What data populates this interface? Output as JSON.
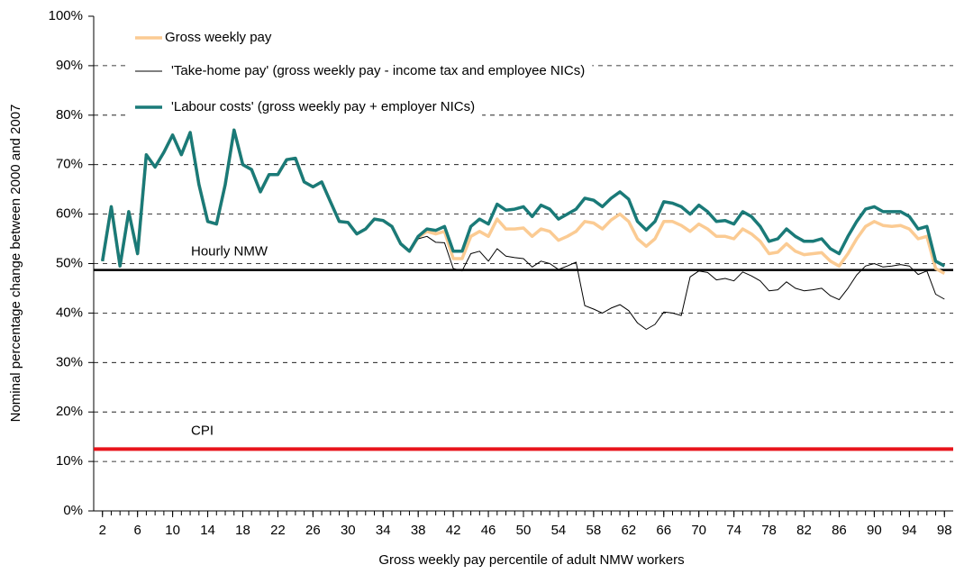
{
  "chart_data": {
    "type": "line",
    "x_label": "Gross weekly pay percentile of adult NMW workers",
    "y_label": "Nominal percentage change between 2000 and 2007",
    "x": [
      2,
      3,
      4,
      5,
      6,
      7,
      8,
      9,
      10,
      11,
      12,
      13,
      14,
      15,
      16,
      17,
      18,
      19,
      20,
      21,
      22,
      23,
      24,
      25,
      26,
      27,
      28,
      29,
      30,
      31,
      32,
      33,
      34,
      35,
      36,
      37,
      38,
      39,
      40,
      41,
      42,
      43,
      44,
      45,
      46,
      47,
      48,
      49,
      50,
      51,
      52,
      53,
      54,
      55,
      56,
      57,
      58,
      59,
      60,
      61,
      62,
      63,
      64,
      65,
      66,
      67,
      68,
      69,
      70,
      71,
      72,
      73,
      74,
      75,
      76,
      77,
      78,
      79,
      80,
      81,
      82,
      83,
      84,
      85,
      86,
      87,
      88,
      89,
      90,
      91,
      92,
      93,
      94,
      95,
      96,
      97,
      98
    ],
    "series": [
      {
        "name": "Gross weekly pay",
        "color": "#fbcb93",
        "values": [
          50.5,
          61.5,
          49.5,
          60.5,
          52,
          72,
          69.5,
          72.5,
          76,
          72,
          76.5,
          66,
          58.5,
          58,
          66,
          77,
          70,
          69,
          64.5,
          68,
          68,
          71,
          71.3,
          66.5,
          65.5,
          66.5,
          62.5,
          58.5,
          58.3,
          56,
          57,
          59,
          58.7,
          57.5,
          54,
          52.5,
          55.3,
          56.5,
          56,
          56.5,
          51,
          51,
          55.5,
          56.5,
          55.5,
          59,
          57,
          57,
          57.2,
          55.5,
          57,
          56.5,
          54.7,
          55.5,
          56.5,
          58.5,
          58.2,
          57,
          58.8,
          60,
          58.5,
          55,
          53.5,
          55,
          58.5,
          58.5,
          57.7,
          56.5,
          58,
          57,
          55.5,
          55.5,
          55,
          57,
          56,
          54.5,
          52,
          52.3,
          54,
          52.5,
          51.8,
          52,
          52.2,
          50.5,
          49.5,
          52,
          55,
          57.5,
          58.5,
          57.7,
          57.5,
          57.7,
          57,
          55,
          55.5,
          49,
          48
        ]
      },
      {
        "name": "'Take-home pay' (gross weekly pay - income tax and employee NICs)",
        "color": "#000000",
        "values": [
          50.5,
          61.5,
          49.5,
          60.5,
          52,
          72,
          69.5,
          72.5,
          76,
          72,
          76.5,
          66,
          58.5,
          58,
          66,
          77,
          70,
          69,
          64.5,
          68,
          68,
          71,
          71.3,
          66.5,
          65.5,
          66.5,
          62.5,
          58.5,
          58.3,
          56,
          57,
          59,
          58.7,
          57.5,
          54,
          52.5,
          55,
          55.5,
          54.3,
          54.2,
          49,
          48.5,
          52,
          52.5,
          50.5,
          53,
          51.5,
          51.2,
          51,
          49.3,
          50.5,
          50,
          48.8,
          49.5,
          50.3,
          41.5,
          40.8,
          40,
          41,
          41.7,
          40.5,
          38,
          36.7,
          37.7,
          40.2,
          40,
          39.5,
          47.3,
          48.5,
          48.2,
          46.7,
          47,
          46.5,
          48.3,
          47.5,
          46.5,
          44.5,
          44.7,
          46.3,
          45,
          44.5,
          44.7,
          45,
          43.5,
          42.7,
          45,
          47.7,
          49.5,
          50,
          49.3,
          49.5,
          49.8,
          49.5,
          47.8,
          48.5,
          43.8,
          42.8
        ]
      },
      {
        "name": "'Labour costs' (gross weekly pay + employer NICs)",
        "color": "#1a7a78",
        "values": [
          50.5,
          61.5,
          49.5,
          60.5,
          52,
          72,
          69.5,
          72.5,
          76,
          72,
          76.5,
          66,
          58.5,
          58,
          66,
          77,
          70,
          69,
          64.5,
          68,
          68,
          71,
          71.3,
          66.5,
          65.5,
          66.5,
          62.5,
          58.5,
          58.3,
          56,
          57,
          59,
          58.7,
          57.5,
          54,
          52.5,
          55.5,
          57,
          56.7,
          57.5,
          52.5,
          52.5,
          57.5,
          59,
          58,
          62,
          60.8,
          61,
          61.5,
          59.5,
          61.8,
          61,
          59,
          60,
          61,
          63.2,
          62.8,
          61.5,
          63.2,
          64.5,
          63,
          58.5,
          56.8,
          58.5,
          62.5,
          62.2,
          61.5,
          60,
          61.8,
          60.5,
          58.5,
          58.7,
          58,
          60.5,
          59.5,
          57.5,
          54.5,
          55,
          57,
          55.5,
          54.5,
          54.5,
          55,
          53,
          52,
          55.5,
          58.5,
          61,
          61.5,
          60.5,
          60.5,
          60.5,
          59.5,
          57,
          57.5,
          50.5,
          49.5
        ]
      }
    ],
    "reference_lines": [
      {
        "name": "Hourly NMW",
        "value": 48.7,
        "color": "#000000"
      },
      {
        "name": "CPI",
        "value": 12.5,
        "color": "#e8141b"
      }
    ],
    "xlim": [
      1,
      99
    ],
    "xticks": [
      2,
      6,
      10,
      14,
      18,
      22,
      26,
      30,
      34,
      38,
      42,
      46,
      50,
      54,
      58,
      62,
      66,
      70,
      74,
      78,
      82,
      86,
      90,
      94,
      98
    ],
    "ylim": [
      0,
      100
    ],
    "yticks": [
      {
        "value": 0,
        "label": "0%"
      },
      {
        "value": 10,
        "label": "10%"
      },
      {
        "value": 20,
        "label": "20%"
      },
      {
        "value": 30,
        "label": "30%"
      },
      {
        "value": 40,
        "label": "40%"
      },
      {
        "value": 50,
        "label": "50%"
      },
      {
        "value": 60,
        "label": "60%"
      },
      {
        "value": 70,
        "label": "70%"
      },
      {
        "value": 80,
        "label": "80%"
      },
      {
        "value": 90,
        "label": "90%"
      },
      {
        "value": 100,
        "label": "100%"
      }
    ],
    "grid": true,
    "legend": "top-left"
  }
}
